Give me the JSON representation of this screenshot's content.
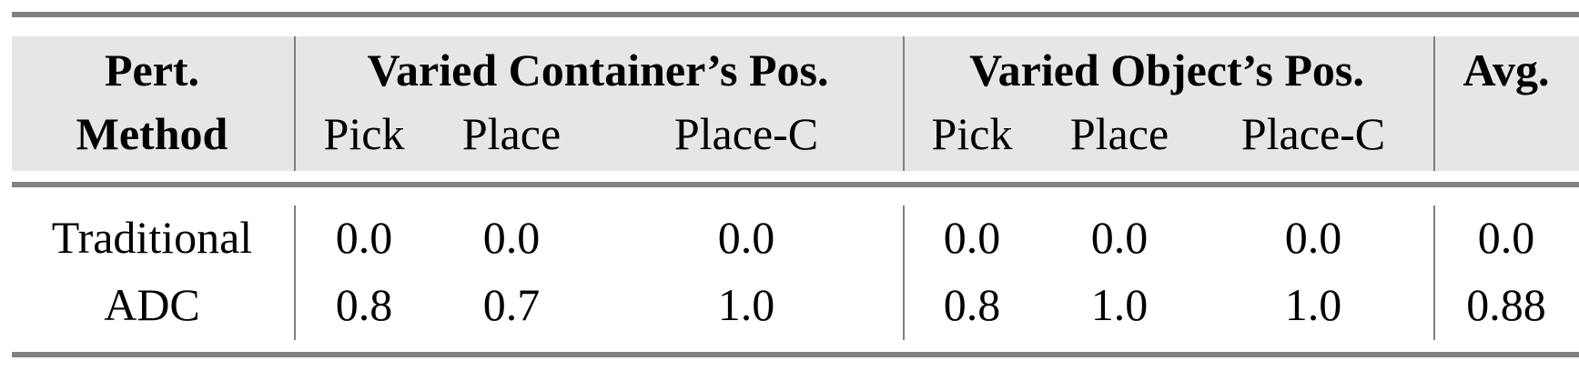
{
  "header": {
    "method_line1": "Pert.",
    "method_line2": "Method",
    "group1": "Varied Container’s Pos.",
    "group2": "Varied Object’s Pos.",
    "avg": "Avg.",
    "subcolumns": [
      "Pick",
      "Place",
      "Place-C",
      "Pick",
      "Place",
      "Place-C"
    ]
  },
  "rows": [
    {
      "method": "Traditional",
      "values": [
        "0.0",
        "0.0",
        "0.0",
        "0.0",
        "0.0",
        "0.0",
        "0.0"
      ]
    },
    {
      "method": "ADC",
      "values": [
        "0.8",
        "0.7",
        "1.0",
        "0.8",
        "1.0",
        "1.0",
        "0.88"
      ]
    }
  ]
}
